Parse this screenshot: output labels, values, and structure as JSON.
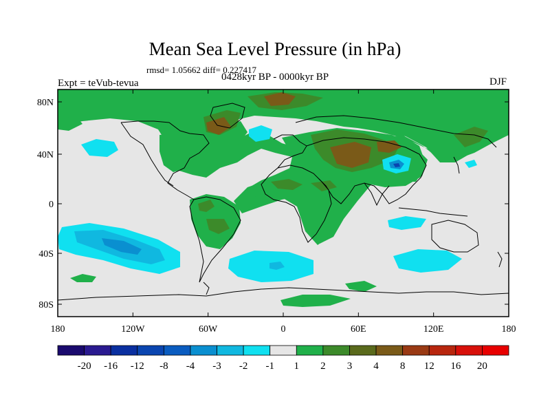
{
  "figure": {
    "title": "Mean Sea Level Pressure (in hPa)",
    "stats": "rmsd= 1.05662 diff= 0.227417",
    "experiment": "Expt = teVub-tevua",
    "period": "0428kyr BP - 0000kyr BP",
    "season": "DJF"
  },
  "axes": {
    "lat_ticks": [
      "80N",
      "40N",
      "0",
      "40S",
      "80S"
    ],
    "lon_ticks": [
      "180",
      "120W",
      "60W",
      "0",
      "60E",
      "120E",
      "180"
    ]
  },
  "colorbar": {
    "labels": [
      "-20",
      "-16",
      "-12",
      "-8",
      "-4",
      "-3",
      "-2",
      "-1",
      "1",
      "2",
      "3",
      "4",
      "8",
      "12",
      "16",
      "20"
    ],
    "colors": [
      "#1a0a6e",
      "#2a1a90",
      "#0a2fa0",
      "#0a45b0",
      "#0a5cc0",
      "#0a8fd0",
      "#10b8e0",
      "#10e0f0",
      "#e6e6e6",
      "#20b04a",
      "#3c8a2a",
      "#5a6a1c",
      "#7a5a18",
      "#9a3a14",
      "#b8260e",
      "#d8100a",
      "#e80000"
    ]
  },
  "colors": {
    "background_land_sea": "#e6e6e6",
    "positive_low": "#20b04a",
    "positive_mid": "#3c8a2a",
    "positive_high": "#7a5a18",
    "negative_low": "#10e0f0",
    "negative_mid": "#10b8e0",
    "negative_high": "#0a5cc0"
  }
}
